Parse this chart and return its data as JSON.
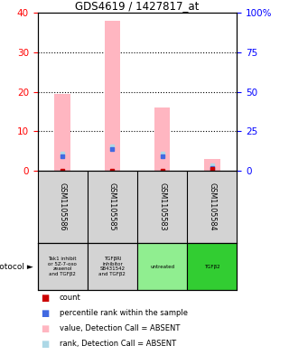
{
  "title": "GDS4619 / 1427817_at",
  "samples": [
    "GSM1105586",
    "GSM1105585",
    "GSM1105583",
    "GSM1105584"
  ],
  "pink_bar_values": [
    19.5,
    38.0,
    16.0,
    3.0
  ],
  "blue_dot_values": [
    9.0,
    13.5,
    9.0,
    1.5
  ],
  "red_square_values": [
    0.1,
    0.1,
    0.1,
    0.5
  ],
  "light_blue_values": [
    9.5,
    14.0,
    9.5,
    2.0
  ],
  "ylim_left": [
    0,
    40
  ],
  "ylim_right": [
    0,
    100
  ],
  "yticks_left": [
    0,
    10,
    20,
    30,
    40
  ],
  "yticks_right": [
    0,
    25,
    50,
    75,
    100
  ],
  "ytick_labels_right": [
    "0",
    "25",
    "50",
    "75",
    "100%"
  ],
  "protocol_labels": [
    "Tak1 inhibit\nor 5Z-7-oxo\nzeaenol\nand TGFβ2",
    "TGFβRI\ninhibitor\nSB431542\nand TGFβ2",
    "untreated",
    "TGFβ2"
  ],
  "protocol_colors": [
    "#d3d3d3",
    "#d3d3d3",
    "#90ee90",
    "#32cd32"
  ],
  "sample_box_color": "#d3d3d3",
  "pink_color": "#ffb6c1",
  "blue_color": "#4169e1",
  "red_color": "#cc0000",
  "light_blue_color": "#add8e6",
  "legend_items": [
    {
      "color": "#cc0000",
      "label": "count"
    },
    {
      "color": "#4169e1",
      "label": "percentile rank within the sample"
    },
    {
      "color": "#ffb6c1",
      "label": "value, Detection Call = ABSENT"
    },
    {
      "color": "#add8e6",
      "label": "rank, Detection Call = ABSENT"
    }
  ]
}
